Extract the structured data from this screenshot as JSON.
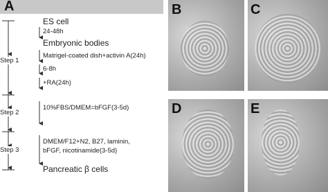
{
  "panels": {
    "a": "A",
    "b": "B",
    "c": "C",
    "d": "D",
    "e": "E"
  },
  "steps": [
    "Step 1",
    "Step 2",
    "Step 3"
  ],
  "stages": [
    "ES cell",
    "Embryonic bodies",
    "Pancreatic β cells"
  ],
  "conditions": [
    "24-48h",
    "Matrigel-coated dish+activin A(24h)",
    "6-8h",
    "+RA(24h)",
    "10%FBS/DMEM=bFGF(3-5d)",
    "DMEM/F12+N2, B27, laminin,",
    "bFGF, nicotinamide(3-5d)"
  ]
}
